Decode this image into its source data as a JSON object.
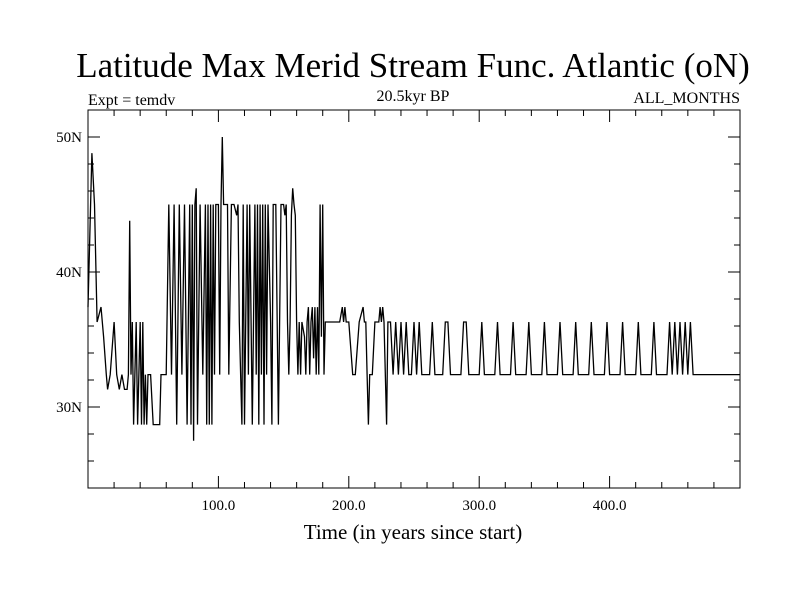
{
  "chart_data": {
    "type": "line",
    "title": "Latitude Max Merid Stream Func. Atlantic (oN)",
    "subtitle_left": "Expt = temdv",
    "subtitle_center": "20.5kyr BP",
    "subtitle_right": "ALL_MONTHS",
    "xlabel": "Time (in years since start)",
    "ylabel": "",
    "xlim": [
      0,
      500
    ],
    "ylim": [
      24,
      52
    ],
    "x_ticks": [
      {
        "value": 100,
        "label": "100.0"
      },
      {
        "value": 200,
        "label": "200.0"
      },
      {
        "value": 300,
        "label": "300.0"
      },
      {
        "value": 400,
        "label": "400.0"
      }
    ],
    "y_ticks": [
      {
        "value": 30,
        "label": "30N"
      },
      {
        "value": 40,
        "label": "40N"
      },
      {
        "value": 50,
        "label": "50N"
      }
    ],
    "grid": false,
    "series": [
      {
        "points": [
          [
            0,
            37.4
          ],
          [
            2,
            45
          ],
          [
            3,
            48.8
          ],
          [
            5,
            45
          ],
          [
            7,
            36.3
          ],
          [
            10,
            37.4
          ],
          [
            12,
            35.2
          ],
          [
            14,
            32.4
          ],
          [
            15,
            31.3
          ],
          [
            17,
            32.4
          ],
          [
            20,
            36.3
          ],
          [
            22,
            32.4
          ],
          [
            24,
            31.3
          ],
          [
            26,
            32.4
          ],
          [
            28,
            31.3
          ],
          [
            30,
            31.3
          ],
          [
            31,
            32.4
          ],
          [
            32,
            43.8
          ],
          [
            33,
            32.4
          ],
          [
            34,
            36.3
          ],
          [
            35,
            28.7
          ],
          [
            37,
            36.3
          ],
          [
            38,
            28.7
          ],
          [
            40,
            36.3
          ],
          [
            41,
            28.7
          ],
          [
            42,
            36.3
          ],
          [
            43,
            28.7
          ],
          [
            44,
            32.4
          ],
          [
            45,
            28.7
          ],
          [
            46,
            32.4
          ],
          [
            48,
            32.4
          ],
          [
            50,
            28.7
          ],
          [
            52,
            28.7
          ],
          [
            55,
            28.7
          ],
          [
            56,
            32.4
          ],
          [
            60,
            32.4
          ],
          [
            62,
            45
          ],
          [
            64,
            32.4
          ],
          [
            66,
            45
          ],
          [
            68,
            28.7
          ],
          [
            70,
            45
          ],
          [
            72,
            32.4
          ],
          [
            74,
            45
          ],
          [
            76,
            28.7
          ],
          [
            78,
            45
          ],
          [
            79,
            28.7
          ],
          [
            80,
            45
          ],
          [
            81,
            27.5
          ],
          [
            82,
            45
          ],
          [
            83,
            46.2
          ],
          [
            84,
            28.7
          ],
          [
            86,
            45
          ],
          [
            88,
            32.4
          ],
          [
            90,
            45
          ],
          [
            91,
            28.7
          ],
          [
            92,
            45
          ],
          [
            93,
            28.7
          ],
          [
            94,
            45
          ],
          [
            95,
            28.7
          ],
          [
            96,
            45
          ],
          [
            97,
            32.4
          ],
          [
            98,
            45
          ],
          [
            100,
            45
          ],
          [
            101,
            32.4
          ],
          [
            102,
            45
          ],
          [
            103,
            50
          ],
          [
            104,
            45
          ],
          [
            105,
            45
          ],
          [
            107,
            45
          ],
          [
            108,
            32.4
          ],
          [
            110,
            45
          ],
          [
            112,
            45
          ],
          [
            114,
            44.2
          ],
          [
            115,
            45
          ],
          [
            116,
            36.3
          ],
          [
            118,
            28.7
          ],
          [
            119,
            45
          ],
          [
            120,
            28.7
          ],
          [
            122,
            45
          ],
          [
            123,
            32.4
          ],
          [
            124,
            45
          ],
          [
            126,
            28.7
          ],
          [
            128,
            45
          ],
          [
            129,
            32.4
          ],
          [
            130,
            45
          ],
          [
            131,
            28.7
          ],
          [
            132,
            45
          ],
          [
            133,
            32.4
          ],
          [
            134,
            45
          ],
          [
            135,
            28.7
          ],
          [
            136,
            45
          ],
          [
            137,
            32.4
          ],
          [
            138,
            45
          ],
          [
            140,
            36.3
          ],
          [
            141,
            28.7
          ],
          [
            142,
            45
          ],
          [
            144,
            45
          ],
          [
            146,
            28.7
          ],
          [
            148,
            45
          ],
          [
            150,
            45
          ],
          [
            151,
            44.2
          ],
          [
            152,
            45
          ],
          [
            153,
            36.3
          ],
          [
            154,
            32.4
          ],
          [
            155,
            36.3
          ],
          [
            156,
            44.2
          ],
          [
            157,
            46.2
          ],
          [
            158,
            45
          ],
          [
            159,
            44.2
          ],
          [
            160,
            36.3
          ],
          [
            161,
            32.4
          ],
          [
            162,
            36.3
          ],
          [
            163,
            32.4
          ],
          [
            164,
            36.3
          ],
          [
            166,
            35.2
          ],
          [
            167,
            32.4
          ],
          [
            168,
            36.3
          ],
          [
            169,
            37.4
          ],
          [
            170,
            32.4
          ],
          [
            171,
            36.3
          ],
          [
            172,
            37.4
          ],
          [
            173,
            33.6
          ],
          [
            174,
            37.4
          ],
          [
            175,
            32.4
          ],
          [
            176,
            37.4
          ],
          [
            177,
            32.4
          ],
          [
            178,
            45
          ],
          [
            179,
            35.2
          ],
          [
            180,
            45
          ],
          [
            181,
            32.4
          ],
          [
            182,
            36.3
          ],
          [
            185,
            36.3
          ],
          [
            190,
            36.3
          ],
          [
            193,
            36.3
          ],
          [
            195,
            37.4
          ],
          [
            196,
            36.3
          ],
          [
            197,
            37.4
          ],
          [
            198,
            36.3
          ],
          [
            200,
            36.3
          ],
          [
            203,
            32.4
          ],
          [
            205,
            32.4
          ],
          [
            208,
            36.3
          ],
          [
            211,
            37.4
          ],
          [
            212,
            36.3
          ],
          [
            213,
            36.3
          ],
          [
            214,
            32.4
          ],
          [
            215,
            28.7
          ],
          [
            216,
            32.4
          ],
          [
            218,
            32.4
          ],
          [
            220,
            36.3
          ],
          [
            223,
            36.3
          ],
          [
            224,
            37.4
          ],
          [
            225,
            36.3
          ],
          [
            226,
            37.4
          ],
          [
            227,
            36.3
          ],
          [
            229,
            28.7
          ],
          [
            230,
            36.3
          ],
          [
            232,
            36.3
          ],
          [
            234,
            32.4
          ],
          [
            236,
            36.3
          ],
          [
            238,
            32.4
          ],
          [
            240,
            36.3
          ],
          [
            242,
            32.4
          ],
          [
            244,
            36.3
          ],
          [
            246,
            32.4
          ],
          [
            248,
            32.4
          ],
          [
            250,
            36.3
          ],
          [
            252,
            32.4
          ],
          [
            254,
            36.3
          ],
          [
            256,
            32.4
          ],
          [
            258,
            32.4
          ],
          [
            262,
            32.4
          ],
          [
            264,
            36.3
          ],
          [
            266,
            32.4
          ],
          [
            272,
            32.4
          ],
          [
            274,
            36.3
          ],
          [
            276,
            36.3
          ],
          [
            278,
            32.4
          ],
          [
            286,
            32.4
          ],
          [
            288,
            36.3
          ],
          [
            290,
            36.3
          ],
          [
            292,
            32.4
          ],
          [
            300,
            32.4
          ],
          [
            302,
            36.3
          ],
          [
            304,
            32.4
          ],
          [
            312,
            32.4
          ],
          [
            314,
            36.3
          ],
          [
            316,
            32.4
          ],
          [
            324,
            32.4
          ],
          [
            326,
            36.3
          ],
          [
            328,
            32.4
          ],
          [
            336,
            32.4
          ],
          [
            338,
            36.3
          ],
          [
            340,
            32.4
          ],
          [
            348,
            32.4
          ],
          [
            350,
            36.3
          ],
          [
            352,
            32.4
          ],
          [
            360,
            32.4
          ],
          [
            362,
            36.3
          ],
          [
            364,
            32.4
          ],
          [
            372,
            32.4
          ],
          [
            374,
            36.3
          ],
          [
            376,
            32.4
          ],
          [
            384,
            32.4
          ],
          [
            386,
            36.3
          ],
          [
            388,
            32.4
          ],
          [
            396,
            32.4
          ],
          [
            398,
            36.3
          ],
          [
            400,
            32.4
          ],
          [
            408,
            32.4
          ],
          [
            410,
            36.3
          ],
          [
            412,
            32.4
          ],
          [
            420,
            32.4
          ],
          [
            422,
            36.3
          ],
          [
            424,
            32.4
          ],
          [
            432,
            32.4
          ],
          [
            434,
            36.3
          ],
          [
            436,
            32.4
          ],
          [
            444,
            32.4
          ],
          [
            446,
            36.3
          ],
          [
            448,
            32.4
          ],
          [
            450,
            36.3
          ],
          [
            452,
            32.4
          ],
          [
            454,
            36.3
          ],
          [
            456,
            32.4
          ],
          [
            458,
            36.3
          ],
          [
            460,
            32.4
          ],
          [
            462,
            36.3
          ],
          [
            464,
            32.4
          ],
          [
            470,
            32.4
          ],
          [
            480,
            32.4
          ],
          [
            490,
            32.4
          ],
          [
            500,
            32.4
          ]
        ]
      }
    ]
  }
}
